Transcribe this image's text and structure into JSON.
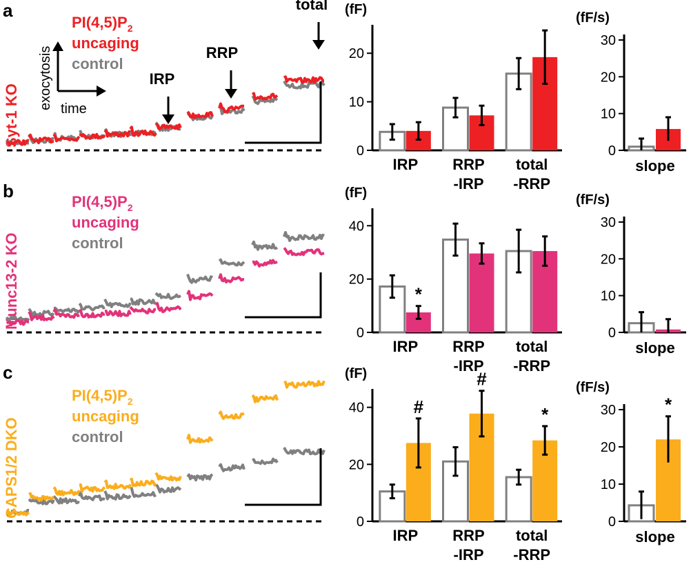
{
  "colors": {
    "red": "#ed2024",
    "pink": "#e2337a",
    "orange": "#fbad1c",
    "gray": "#808080",
    "black": "#000000"
  },
  "schematic": {
    "y_axis_label": "exocytosis",
    "x_axis_label": "time"
  },
  "chart_data": [
    {
      "panel": "a",
      "genotype": "Syt-1 KO",
      "genotype_color": "red",
      "legend": {
        "treatment_line1": "PI(4,5)P",
        "treatment_sub": "2",
        "treatment_line2": "uncaging",
        "control": "control"
      },
      "trace_annotations": [
        "IRP",
        "RRP",
        "total"
      ],
      "trace": {
        "type": "line",
        "description": "membrane capacitance, stepwise increases after each stimulus",
        "control_levels": [
          0.02,
          0.04,
          0.06,
          0.08,
          0.1,
          0.11,
          0.16,
          0.26,
          0.32,
          0.42,
          0.57
        ],
        "treatment_levels": [
          0.02,
          0.04,
          0.06,
          0.08,
          0.1,
          0.11,
          0.17,
          0.28,
          0.34,
          0.46,
          0.62
        ],
        "scale_bar": true
      },
      "bars": {
        "type": "bar",
        "unit_label": "(fF)",
        "ylim": [
          0,
          25
        ],
        "yticks": [
          0,
          10,
          20
        ],
        "categories": [
          [
            "IRP"
          ],
          [
            "RRP",
            "-IRP"
          ],
          [
            "total",
            "-RRP"
          ]
        ],
        "series": [
          {
            "name": "control",
            "values": [
              3.8,
              8.8,
              15.8
            ],
            "errors": [
              1.6,
              2.0,
              3.2
            ]
          },
          {
            "name": "PI(4,5)P2 uncaging",
            "values": [
              4.0,
              7.2,
              19.2
            ],
            "errors": [
              1.8,
              2.0,
              5.5
            ]
          }
        ],
        "markers": [
          "",
          "",
          ""
        ]
      },
      "slope": {
        "type": "bar",
        "unit_label": "(fF/s)",
        "ylim": [
          0,
          35
        ],
        "yticks": [
          0,
          10,
          20,
          30
        ],
        "category": "slope",
        "series": [
          {
            "name": "control",
            "value": 1.0,
            "error": 2.2
          },
          {
            "name": "PI(4,5)P2 uncaging",
            "value": 5.8,
            "error": 3.2
          }
        ],
        "marker": ""
      }
    },
    {
      "panel": "b",
      "genotype": "Munc13-2 KO",
      "genotype_color": "pink",
      "legend": {
        "treatment_line1": "PI(4,5)P",
        "treatment_sub": "2",
        "treatment_line2": "uncaging",
        "control": "control"
      },
      "trace_annotations": [],
      "trace": {
        "type": "line",
        "description": "membrane capacitance, stepwise increases after each stimulus",
        "control_levels": [
          0.08,
          0.12,
          0.15,
          0.17,
          0.2,
          0.23,
          0.28,
          0.43,
          0.58,
          0.73,
          0.82
        ],
        "treatment_levels": [
          0.04,
          0.08,
          0.1,
          0.11,
          0.12,
          0.14,
          0.16,
          0.27,
          0.43,
          0.58,
          0.68
        ],
        "scale_bar": true
      },
      "bars": {
        "type": "bar",
        "unit_label": "(fF)",
        "ylim": [
          0,
          45
        ],
        "yticks": [
          0,
          20,
          40
        ],
        "categories": [
          [
            "IRP"
          ],
          [
            "RRP",
            "-IRP"
          ],
          [
            "total",
            "-RRP"
          ]
        ],
        "series": [
          {
            "name": "control",
            "values": [
              17.2,
              34.8,
              30.5
            ],
            "errors": [
              4.2,
              6.0,
              8.0
            ]
          },
          {
            "name": "PI(4,5)P2 uncaging",
            "values": [
              7.5,
              29.6,
              30.5
            ],
            "errors": [
              2.4,
              3.8,
              5.5
            ]
          }
        ],
        "markers": [
          "*",
          "",
          ""
        ]
      },
      "slope": {
        "type": "bar",
        "unit_label": "(fF/s)",
        "ylim": [
          0,
          35
        ],
        "yticks": [
          0,
          10,
          20,
          30
        ],
        "category": "slope",
        "series": [
          {
            "name": "control",
            "value": 2.5,
            "error": 3.0
          },
          {
            "name": "PI(4,5)P2 uncaging",
            "value": 0.8,
            "error": 2.8
          }
        ],
        "marker": ""
      }
    },
    {
      "panel": "c",
      "genotype": "CAPS1/2 DKO",
      "genotype_color": "orange",
      "legend": {
        "treatment_line1": "PI(4,5)P",
        "treatment_sub": "2",
        "treatment_line2": "uncaging",
        "control": "control"
      },
      "trace_annotations": [],
      "trace": {
        "type": "line",
        "description": "membrane capacitance, stepwise increases after each stimulus",
        "control_levels": [
          0.02,
          0.1,
          0.11,
          0.13,
          0.14,
          0.16,
          0.19,
          0.28,
          0.35,
          0.4,
          0.47
        ],
        "treatment_levels": [
          0.02,
          0.13,
          0.17,
          0.2,
          0.22,
          0.24,
          0.28,
          0.56,
          0.74,
          0.87,
          0.98
        ],
        "scale_bar": true
      },
      "bars": {
        "type": "bar",
        "unit_label": "(fF)",
        "ylim": [
          0,
          45
        ],
        "yticks": [
          0,
          20,
          40
        ],
        "categories": [
          [
            "IRP"
          ],
          [
            "RRP",
            "-IRP"
          ],
          [
            "total",
            "-RRP"
          ]
        ],
        "series": [
          {
            "name": "control",
            "values": [
              10.5,
              21.0,
              15.5
            ],
            "errors": [
              2.4,
              5.0,
              2.6
            ]
          },
          {
            "name": "PI(4,5)P2 uncaging",
            "values": [
              27.5,
              37.8,
              28.4
            ],
            "errors": [
              8.6,
              8.0,
              5.0
            ]
          }
        ],
        "markers": [
          "#",
          "#",
          "*"
        ]
      },
      "slope": {
        "type": "bar",
        "unit_label": "(fF/s)",
        "ylim": [
          0,
          35
        ],
        "yticks": [
          0,
          10,
          20,
          30
        ],
        "category": "slope",
        "series": [
          {
            "name": "control",
            "value": 4.3,
            "error": 3.7
          },
          {
            "name": "PI(4,5)P2 uncaging",
            "value": 22.0,
            "error": 6.2
          }
        ],
        "marker": "*"
      }
    }
  ]
}
